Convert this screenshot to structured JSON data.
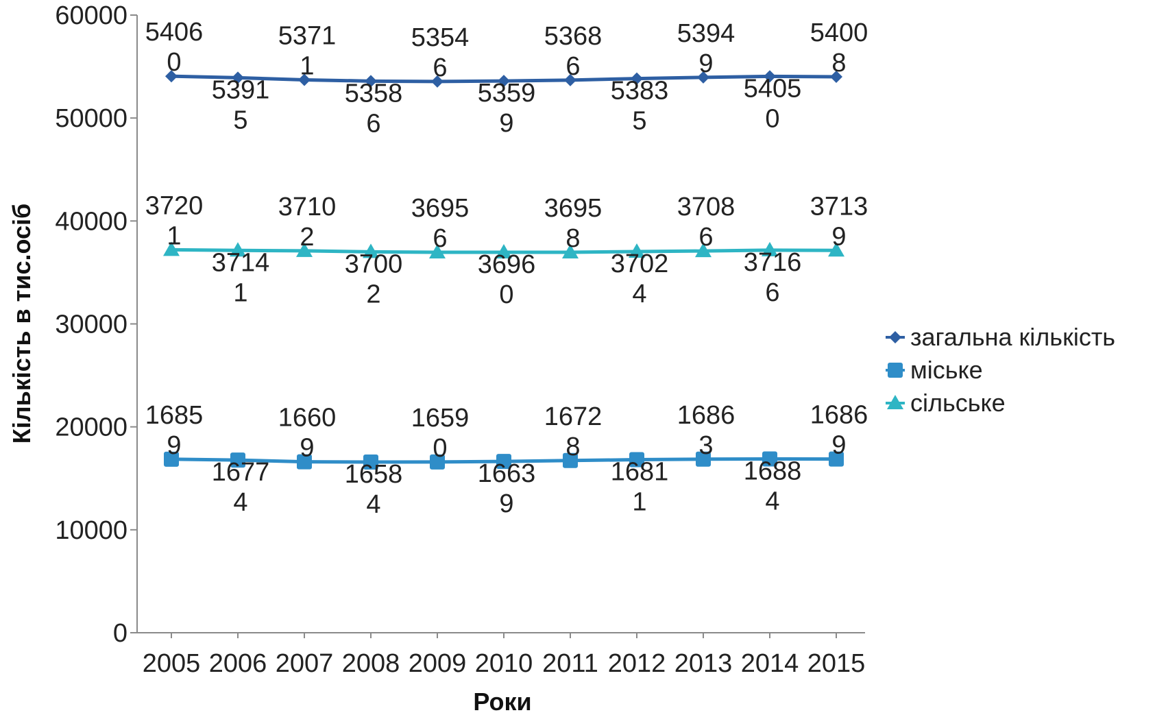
{
  "chart_data": {
    "type": "line",
    "title": "",
    "xlabel": "Роки",
    "ylabel": "Кількість в тис.осіб",
    "categories": [
      "2005",
      "2006",
      "2007",
      "2008",
      "2009",
      "2010",
      "2011",
      "2012",
      "2013",
      "2014",
      "2015"
    ],
    "ylim": [
      0,
      60000
    ],
    "yticks": [
      "0",
      "10000",
      "20000",
      "30000",
      "40000",
      "50000",
      "60000"
    ],
    "grid": false,
    "legend_position": "right",
    "series": [
      {
        "name": "загальна кількість",
        "color": "#2e5fa3",
        "marker": "diamond",
        "values": [
          54060,
          53915,
          53711,
          53586,
          53546,
          53599,
          53686,
          53835,
          53949,
          54050,
          54008
        ],
        "labels": [
          [
            "5406",
            "0"
          ],
          [
            "5391",
            "5"
          ],
          [
            "5371",
            "1"
          ],
          [
            "5358",
            "6"
          ],
          [
            "5354",
            "6"
          ],
          [
            "5359",
            "9"
          ],
          [
            "5368",
            "6"
          ],
          [
            "5383",
            "5"
          ],
          [
            "5394",
            "9"
          ],
          [
            "5405",
            "0"
          ],
          [
            "5400",
            "8"
          ]
        ]
      },
      {
        "name": "міське",
        "color": "#2f8dc8",
        "marker": "square",
        "values": [
          16859,
          16774,
          16609,
          16584,
          16590,
          16639,
          16728,
          16811,
          16863,
          16884,
          16869
        ],
        "labels": [
          [
            "1685",
            "9"
          ],
          [
            "1677",
            "4"
          ],
          [
            "1660",
            "9"
          ],
          [
            "1658",
            "4"
          ],
          [
            "1659",
            "0"
          ],
          [
            "1663",
            "9"
          ],
          [
            "1672",
            "8"
          ],
          [
            "1681",
            "1"
          ],
          [
            "1686",
            "3"
          ],
          [
            "1688",
            "4"
          ],
          [
            "1686",
            "9"
          ]
        ]
      },
      {
        "name": "сільське",
        "color": "#2eb5c4",
        "marker": "triangle",
        "values": [
          37201,
          37141,
          37102,
          37002,
          36956,
          36960,
          36958,
          37024,
          37086,
          37166,
          37139
        ],
        "labels": [
          [
            "3720",
            "1"
          ],
          [
            "3714",
            "1"
          ],
          [
            "3710",
            "2"
          ],
          [
            "3700",
            "2"
          ],
          [
            "3695",
            "6"
          ],
          [
            "3696",
            "0"
          ],
          [
            "3695",
            "8"
          ],
          [
            "3702",
            "4"
          ],
          [
            "3708",
            "6"
          ],
          [
            "3716",
            "6"
          ],
          [
            "3713",
            "9"
          ]
        ]
      }
    ]
  }
}
